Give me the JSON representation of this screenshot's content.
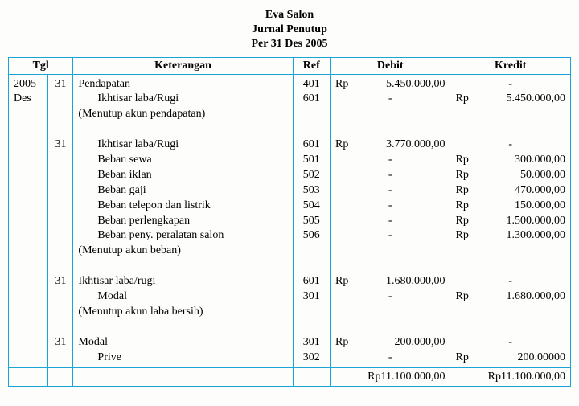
{
  "title": {
    "line1": "Eva Salon",
    "line2": "Jurnal Penutup",
    "line3": "Per 31 Des 2005"
  },
  "headers": {
    "tgl": "Tgl",
    "ket": "Keterangan",
    "ref": "Ref",
    "debit": "Debit",
    "kredit": "Kredit"
  },
  "year": "2005",
  "month": "Des",
  "cur": "Rp",
  "entries": [
    {
      "day": "31",
      "lines": [
        {
          "desc": "Pendapatan",
          "indent": 0,
          "ref": "401",
          "debit": "5.450.000,00",
          "kredit": "-"
        },
        {
          "desc": "Ikhtisar laba/Rugi",
          "indent": 1,
          "ref": "601",
          "debit": "-",
          "kredit": "5.450.000,00"
        },
        {
          "desc": "(Menutup akun pendapatan)",
          "indent": 0,
          "ref": "",
          "debit": "",
          "kredit": ""
        }
      ]
    },
    {
      "day": "31",
      "lines": [
        {
          "desc": "Ikhtisar laba/Rugi",
          "indent": 1,
          "ref": "601",
          "debit": "3.770.000,00",
          "kredit": "-"
        },
        {
          "desc": "Beban sewa",
          "indent": 1,
          "ref": "501",
          "debit": "-",
          "kredit": "300.000,00"
        },
        {
          "desc": "Beban iklan",
          "indent": 1,
          "ref": "502",
          "debit": "-",
          "kredit": "50.000,00"
        },
        {
          "desc": "Beban gaji",
          "indent": 1,
          "ref": "503",
          "debit": "-",
          "kredit": "470.000,00"
        },
        {
          "desc": "Beban telepon dan listrik",
          "indent": 1,
          "ref": "504",
          "debit": "-",
          "kredit": "150.000,00"
        },
        {
          "desc": "Beban perlengkapan",
          "indent": 1,
          "ref": "505",
          "debit": "-",
          "kredit": "1.500.000,00"
        },
        {
          "desc": "Beban peny. peralatan salon",
          "indent": 1,
          "ref": "506",
          "debit": "-",
          "kredit": "1.300.000,00"
        },
        {
          "desc": "(Menutup akun beban)",
          "indent": 0,
          "ref": "",
          "debit": "",
          "kredit": ""
        }
      ]
    },
    {
      "day": "31",
      "lines": [
        {
          "desc": "Ikhtisar laba/rugi",
          "indent": 0,
          "ref": "601",
          "debit": "1.680.000,00",
          "kredit": "-"
        },
        {
          "desc": "Modal",
          "indent": 1,
          "ref": "301",
          "debit": "-",
          "kredit": "1.680.000,00"
        },
        {
          "desc": "(Menutup akun laba bersih)",
          "indent": 0,
          "ref": "",
          "debit": "",
          "kredit": ""
        }
      ]
    },
    {
      "day": "31",
      "lines": [
        {
          "desc": "Modal",
          "indent": 0,
          "ref": "301",
          "debit": "200.000,00",
          "kredit": "-"
        },
        {
          "desc": "Prive",
          "indent": 1,
          "ref": "302",
          "debit": "-",
          "kredit": "200.00000"
        }
      ]
    }
  ],
  "totals": {
    "debit": "Rp11.100.000,00",
    "kredit": "Rp11.100.000,00"
  }
}
